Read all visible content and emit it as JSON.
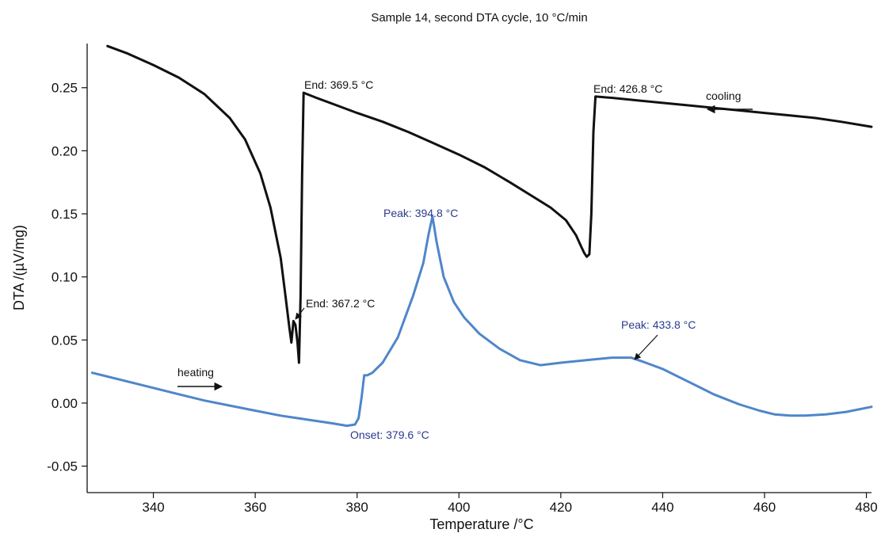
{
  "chart_data": {
    "type": "line",
    "title": "Sample 14, second DTA cycle, 10 °C/min",
    "xlabel": "Temperature /°C",
    "ylabel": "DTA /(µV/mg)",
    "xlim": [
      327,
      481
    ],
    "ylim": [
      -0.071,
      0.285
    ],
    "x_ticks": [
      340,
      360,
      380,
      400,
      420,
      440,
      460,
      480
    ],
    "x_tick_labels": [
      "340",
      "360",
      "380",
      "400",
      "420",
      "440",
      "460",
      "480"
    ],
    "y_ticks": [
      -0.05,
      0.0,
      0.05,
      0.1,
      0.15,
      0.2,
      0.25
    ],
    "y_tick_labels": [
      "-0.05",
      "0.00",
      "0.05",
      "0.10",
      "0.15",
      "0.20",
      "0.25"
    ],
    "grid": false,
    "colors": {
      "heating": "#4f86c9",
      "cooling": "#111111",
      "heating_annotation": "#2b3a8c",
      "cooling_annotation": "#111111"
    },
    "series": [
      {
        "key": "cooling",
        "x": [
          331,
          335,
          340,
          345,
          350,
          355,
          358,
          361,
          363,
          365,
          366,
          366.7,
          367.1,
          367.5,
          367.9,
          368.3,
          368.6,
          368.9,
          369.2,
          369.5,
          372,
          376,
          380,
          385,
          390,
          395,
          400,
          405,
          410,
          414,
          418,
          421,
          423,
          424,
          424.6,
          425.1,
          425.6,
          426,
          426.4,
          426.8,
          430,
          435,
          440,
          445,
          450,
          455,
          460,
          465,
          470,
          475,
          481
        ],
        "y": [
          0.283,
          0.277,
          0.268,
          0.258,
          0.245,
          0.226,
          0.209,
          0.182,
          0.155,
          0.115,
          0.083,
          0.06,
          0.048,
          0.065,
          0.062,
          0.048,
          0.032,
          0.085,
          0.18,
          0.246,
          0.242,
          0.236,
          0.23,
          0.223,
          0.215,
          0.206,
          0.197,
          0.187,
          0.175,
          0.165,
          0.155,
          0.145,
          0.133,
          0.124,
          0.119,
          0.116,
          0.118,
          0.15,
          0.215,
          0.243,
          0.242,
          0.24,
          0.238,
          0.236,
          0.234,
          0.232,
          0.23,
          0.228,
          0.226,
          0.223,
          0.219
        ]
      },
      {
        "key": "heating",
        "x": [
          328,
          335,
          340,
          345,
          350,
          355,
          360,
          365,
          370,
          375,
          378,
          379.6,
          380.3,
          380.9,
          381.4,
          382,
          383,
          385,
          388,
          391,
          393,
          394,
          394.8,
          395.6,
          397,
          399,
          401,
          404,
          408,
          412,
          416,
          420,
          425,
          430,
          433.8,
          436,
          440,
          445,
          450,
          455,
          459,
          462,
          465,
          468,
          472,
          476,
          481
        ],
        "y": [
          0.024,
          0.017,
          0.012,
          0.007,
          0.002,
          -0.002,
          -0.006,
          -0.01,
          -0.013,
          -0.016,
          -0.018,
          -0.017,
          -0.012,
          0.005,
          0.022,
          0.022,
          0.024,
          0.032,
          0.052,
          0.085,
          0.111,
          0.133,
          0.148,
          0.128,
          0.1,
          0.08,
          0.068,
          0.055,
          0.043,
          0.034,
          0.03,
          0.032,
          0.034,
          0.036,
          0.036,
          0.033,
          0.027,
          0.017,
          0.007,
          -0.001,
          -0.006,
          -0.009,
          -0.01,
          -0.01,
          -0.009,
          -0.007,
          -0.003
        ]
      }
    ],
    "annotations": {
      "cool_end_1": "End: 369.5 °C",
      "cool_end_2": "End: 426.8 °C",
      "cool_end_3": "End: 367.2 °C",
      "cooling_label": "cooling",
      "heat_peak_1": "Peak: 394.8 °C",
      "heat_peak_2": "Peak: 433.8 °C",
      "heat_onset": "Onset: 379.6 °C",
      "heating_label": "heating"
    }
  }
}
